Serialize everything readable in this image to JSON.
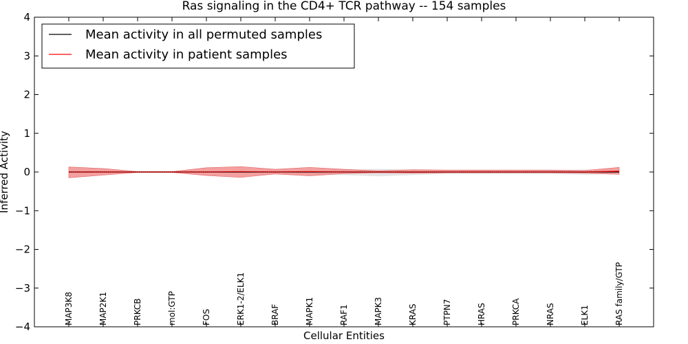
{
  "chart_data": {
    "type": "line",
    "title": "Ras signaling in the CD4+ TCR pathway -- 154 samples",
    "xlabel": "Cellular Entities",
    "ylabel": "Inferred Activity",
    "ylim": [
      -4,
      4
    ],
    "yticks": [
      -4,
      -3,
      -2,
      -1,
      0,
      1,
      2,
      3,
      4
    ],
    "ytick_labels": [
      "−4",
      "−3",
      "−2",
      "−1",
      "0",
      "1",
      "2",
      "3",
      "4"
    ],
    "grid": false,
    "legend_position": "top-left",
    "categories": [
      "MAP3K8",
      "MAP2K1",
      "PRKCB",
      "mol:GTP",
      "FOS",
      "ERK1-2/ELK1",
      "BRAF",
      "MAPK1",
      "RAF1",
      "MAPK3",
      "KRAS",
      "PTPN7",
      "HRAS",
      "PRKCA",
      "NRAS",
      "ELK1",
      "RAS family/GTP"
    ],
    "series": [
      {
        "name": "Mean activity in all permuted samples",
        "color": "#000000",
        "band_color": "#d3d3d3",
        "values": [
          0.0,
          0.0,
          0.0,
          0.0,
          0.0,
          0.0,
          0.0,
          0.0,
          0.0,
          0.0,
          0.0,
          0.0,
          0.0,
          0.0,
          0.0,
          0.0,
          0.0
        ],
        "upper": [
          0.04,
          0.03,
          0.01,
          0.01,
          0.03,
          0.03,
          0.03,
          0.04,
          0.06,
          0.08,
          0.06,
          0.04,
          0.05,
          0.05,
          0.05,
          0.06,
          0.04
        ],
        "lower": [
          -0.04,
          -0.03,
          -0.01,
          -0.01,
          -0.03,
          -0.03,
          -0.03,
          -0.05,
          -0.08,
          -0.11,
          -0.08,
          -0.05,
          -0.05,
          -0.05,
          -0.05,
          -0.07,
          -0.04
        ]
      },
      {
        "name": "Mean activity in patient samples",
        "color": "#ff0000",
        "band_color": "#f08080",
        "values": [
          0.0,
          0.0,
          0.0,
          0.0,
          0.0,
          0.01,
          0.0,
          0.01,
          0.0,
          0.0,
          0.0,
          0.0,
          0.0,
          0.0,
          0.0,
          0.0,
          0.02
        ],
        "upper": [
          0.13,
          0.09,
          0.01,
          0.01,
          0.11,
          0.14,
          0.07,
          0.12,
          0.07,
          0.03,
          0.06,
          0.05,
          0.05,
          0.05,
          0.05,
          0.04,
          0.12
        ],
        "lower": [
          -0.15,
          -0.08,
          -0.01,
          -0.01,
          -0.09,
          -0.14,
          -0.05,
          -0.1,
          -0.04,
          -0.02,
          -0.03,
          -0.02,
          -0.02,
          -0.02,
          -0.02,
          -0.03,
          -0.06
        ]
      }
    ]
  }
}
